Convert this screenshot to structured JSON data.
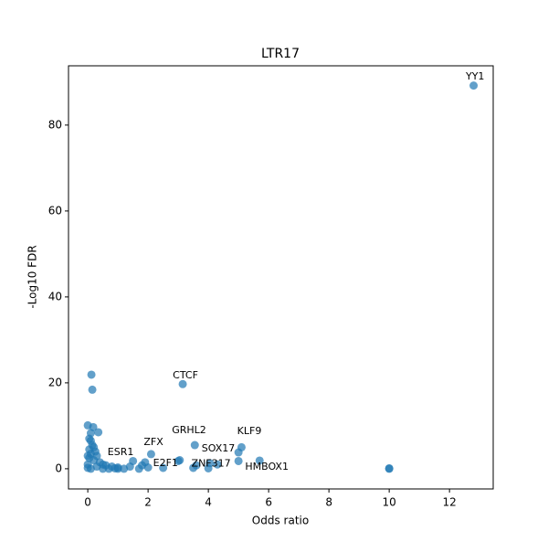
{
  "chart_data": {
    "type": "scatter",
    "title": "LTR17",
    "x_label": "Odds ratio",
    "y_label": "-Log10 FDR",
    "color": "#1f77b4",
    "x": [
      12.8,
      0.12,
      0.15,
      3.15,
      0,
      0.18,
      0.35,
      0.1,
      0.05,
      0.1,
      0.15,
      0.2,
      0.05,
      0.25,
      0.1,
      0.3,
      0,
      0.05,
      0.2,
      0.4,
      0.5,
      0.6,
      0.8,
      1,
      0.3,
      0,
      0,
      0.1,
      0.5,
      0.7,
      1.2,
      1.5,
      1.4,
      1.8,
      1.9,
      2,
      2.1,
      2.5,
      3,
      3.05,
      3.5,
      3.55,
      3.6,
      4,
      4.05,
      4.3,
      5,
      5.1,
      5,
      5.7,
      10,
      10,
      1,
      0.9,
      1.7
    ],
    "y": [
      89.2,
      21.9,
      18.4,
      19.7,
      10.1,
      9.7,
      8.5,
      8.3,
      7,
      6.5,
      5.5,
      5,
      4.5,
      4,
      3.5,
      3,
      3,
      2.5,
      2,
      1.5,
      1,
      0.8,
      0.5,
      0.3,
      0.5,
      1,
      0.2,
      0,
      0,
      0,
      0,
      1.8,
      0.5,
      0.8,
      1.5,
      0.3,
      3.4,
      0.2,
      1.8,
      2,
      0.2,
      5.5,
      0.8,
      0.1,
      1.3,
      1,
      3.8,
      5,
      1.8,
      1.9,
      0,
      0.1,
      0,
      0.1,
      0
    ],
    "annotations": [
      {
        "text": "YY1",
        "x": 12.85,
        "y": 91.3
      },
      {
        "text": "CTCF",
        "x": 3.24,
        "y": 21.7
      },
      {
        "text": "GRHL2",
        "x": 3.36,
        "y": 8.9
      },
      {
        "text": "KLF9",
        "x": 5.36,
        "y": 8.7
      },
      {
        "text": "SOX17",
        "x": 4.33,
        "y": 4.7
      },
      {
        "text": "ZFX",
        "x": 2.18,
        "y": 6.2
      },
      {
        "text": "ESR1",
        "x": 1.09,
        "y": 3.8
      },
      {
        "text": "E2F1",
        "x": 2.58,
        "y": 1.3
      },
      {
        "text": "ZNF317",
        "x": 4.09,
        "y": 1.1
      },
      {
        "text": "HMBOX1",
        "x": 5.94,
        "y": 0.4
      }
    ],
    "xlim": [
      -0.64,
      13.45
    ],
    "ylim": [
      -4.7,
      93.8
    ],
    "xticks": [
      0,
      2,
      4,
      6,
      8,
      10,
      12
    ],
    "yticks": [
      0,
      20,
      40,
      60,
      80
    ]
  }
}
